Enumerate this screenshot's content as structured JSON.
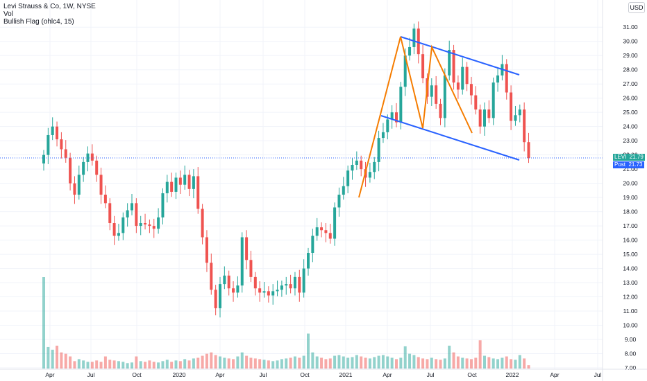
{
  "legend": {
    "title": "Levi Strauss & Co, 1W, NYSE",
    "indicator1": "Vol",
    "indicator2": "Bullish Flag (ohlc4, 15)"
  },
  "currency_button": "USD",
  "price_tags": [
    {
      "label": "LEVI",
      "value": "21.79",
      "color": "#26a69a"
    },
    {
      "label": "Post",
      "value": "21.73",
      "color": "#2962ff"
    }
  ],
  "chart_data": {
    "type": "candlestick",
    "symbol": "Levi Strauss & Co",
    "interval": "1W",
    "exchange": "NYSE",
    "y_ticks": [
      "7.00",
      "8.00",
      "9.00",
      "10.00",
      "11.00",
      "12.00",
      "13.00",
      "14.00",
      "15.00",
      "16.00",
      "17.00",
      "18.00",
      "19.00",
      "20.00",
      "21.00",
      "22.00",
      "23.00",
      "24.00",
      "25.00",
      "26.00",
      "27.00",
      "28.00",
      "29.00",
      "30.00",
      "31.00"
    ],
    "ylim": [
      7,
      31.5
    ],
    "x_ticks": [
      "Apr",
      "Jul",
      "Oct",
      "2020",
      "Apr",
      "Jul",
      "Oct",
      "2021",
      "Apr",
      "Jul",
      "Oct",
      "2022",
      "Apr",
      "Jul"
    ],
    "last_price": 21.79,
    "post_price": 21.73,
    "colors": {
      "up": "#26a69a",
      "down": "#ef5350",
      "pattern_line": "#2962ff",
      "zigzag": "#f57c00",
      "price_line": "#2962ff"
    },
    "close": [
      22.0,
      23.4,
      24.0,
      23.1,
      22.4,
      21.8,
      20.0,
      19.2,
      20.6,
      21.5,
      22.1,
      21.6,
      20.6,
      19.2,
      18.6,
      17.2,
      16.3,
      16.5,
      17.6,
      18.1,
      18.6,
      17.0,
      17.2,
      17.1,
      17.0,
      16.8,
      17.6,
      19.3,
      20.1,
      19.4,
      20.4,
      19.9,
      20.6,
      19.6,
      20.5,
      18.2,
      16.2,
      14.4,
      12.5,
      11.2,
      12.9,
      13.5,
      12.6,
      12.3,
      12.8,
      16.2,
      14.6,
      13.4,
      12.6,
      12.3,
      12.4,
      12.1,
      12.4,
      12.5,
      12.8,
      12.9,
      12.6,
      13.4,
      12.3,
      14.0,
      15.1,
      16.3,
      16.9,
      16.7,
      16.5,
      16.1,
      18.3,
      19.2,
      19.8,
      20.9,
      21.3,
      21.6,
      21.0,
      20.4,
      20.8,
      21.5,
      23.2,
      23.6,
      24.5,
      25.0,
      24.3,
      26.8,
      29.0,
      29.6,
      30.9,
      29.1,
      27.4,
      26.1,
      26.9,
      25.6,
      24.6,
      27.6,
      29.4,
      27.1,
      26.6,
      28.2,
      27.0,
      26.2,
      25.2,
      24.0,
      25.2,
      24.6,
      27.1,
      27.6,
      28.4,
      26.4,
      24.4,
      24.8,
      25.2,
      22.9,
      21.79
    ],
    "volume": [
      13.6,
      3.2,
      2.8,
      3.4,
      2.4,
      2.2,
      1.8,
      1.1,
      1.4,
      1.2,
      1.0,
      1.0,
      1.2,
      1.0,
      1.8,
      1.3,
      1.2,
      1.1,
      1.0,
      0.8,
      0.9,
      1.8,
      1.1,
      1.0,
      1.2,
      1.0,
      0.9,
      1.1,
      1.3,
      1.0,
      1.2,
      1.1,
      1.4,
      1.2,
      1.5,
      1.6,
      1.9,
      2.2,
      2.4,
      2.0,
      1.8,
      1.6,
      1.5,
      1.4,
      1.8,
      2.4,
      1.9,
      1.6,
      1.5,
      1.4,
      1.3,
      1.2,
      1.1,
      1.2,
      1.4,
      1.5,
      1.6,
      1.8,
      1.6,
      1.9,
      5.2,
      2.4,
      1.8,
      1.6,
      1.4,
      1.5,
      1.9,
      2.0,
      1.8,
      1.6,
      1.7,
      2.0,
      1.8,
      1.6,
      1.5,
      1.7,
      1.9,
      2.0,
      1.8,
      1.6,
      1.4,
      1.6,
      3.3,
      2.2,
      2.0,
      1.7,
      1.5,
      1.4,
      1.6,
      1.4,
      1.3,
      1.5,
      3.4,
      2.4,
      1.8,
      1.6,
      1.5,
      1.4,
      1.6,
      4.2,
      1.9,
      1.7,
      1.5,
      1.4,
      1.6,
      1.8,
      1.4,
      1.3,
      2.0,
      1.5,
      0.5
    ]
  }
}
